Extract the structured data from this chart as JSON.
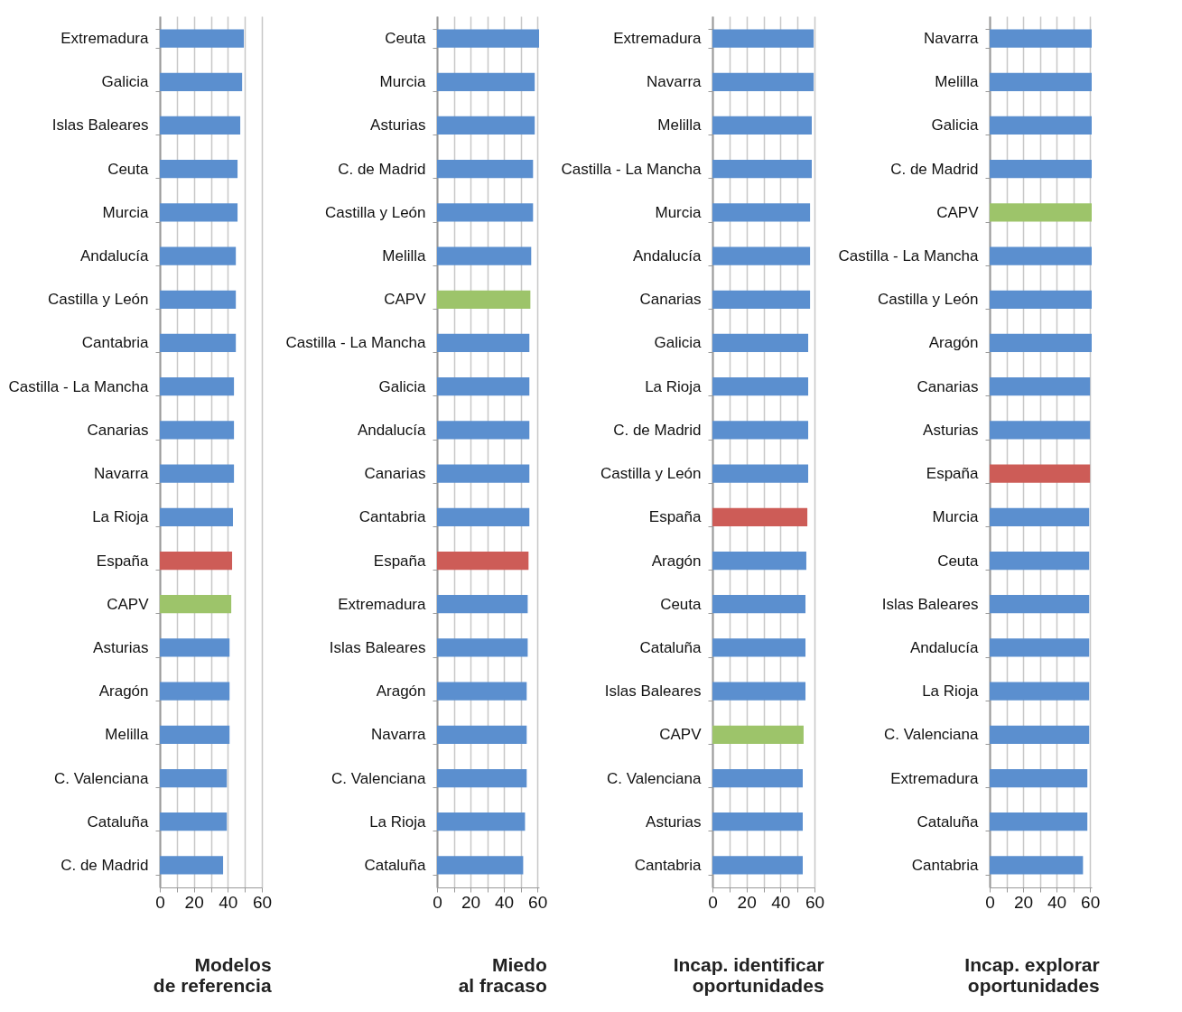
{
  "chart_data": [
    {
      "type": "bar",
      "orientation": "horizontal",
      "title": "Modelos\nde referencia",
      "categories": [
        "Extremadura",
        "Galicia",
        "Islas Baleares",
        "Ceuta",
        "Murcia",
        "Andalucía",
        "Castilla y León",
        "Cantabria",
        "Castilla - La Mancha",
        "Canarias",
        "Navarra",
        "La Rioja",
        "España",
        "CAPV",
        "Asturias",
        "Aragón",
        "Melilla",
        "C. Valenciana",
        "Cataluña",
        "C. de Madrid"
      ],
      "values": [
        49.4,
        48.4,
        47.3,
        45.7,
        45.7,
        44.7,
        44.7,
        44.7,
        43.6,
        43.6,
        43.6,
        43,
        42.5,
        42,
        41,
        41,
        41,
        39.4,
        39.4,
        37.2
      ],
      "colors": [
        "#5b8fcf",
        "#5b8fcf",
        "#5b8fcf",
        "#5b8fcf",
        "#5b8fcf",
        "#5b8fcf",
        "#5b8fcf",
        "#5b8fcf",
        "#5b8fcf",
        "#5b8fcf",
        "#5b8fcf",
        "#5b8fcf",
        "#cd5c57",
        "#9dc46a",
        "#5b8fcf",
        "#5b8fcf",
        "#5b8fcf",
        "#5b8fcf",
        "#5b8fcf",
        "#5b8fcf"
      ],
      "xlim": [
        0,
        60
      ],
      "xticks": [
        0,
        {
          "value": 10,
          "label": null
        },
        20,
        {
          "value": 30,
          "label": null
        },
        40,
        {
          "value": 50,
          "label": null
        },
        60
      ],
      "grid": "x"
    },
    {
      "type": "bar",
      "orientation": "horizontal",
      "title": "Miedo\nal fracaso",
      "categories": [
        "Ceuta",
        "Murcia",
        "Asturias",
        "C. de Madrid",
        "Castilla y León",
        "Melilla",
        "CAPV",
        "Castilla - La Mancha",
        "Galicia",
        "Andalucía",
        "Canarias",
        "Cantabria",
        "España",
        "Extremadura",
        "Islas Baleares",
        "Aragón",
        "Navarra",
        "C. Valenciana",
        "La Rioja",
        "Cataluña"
      ],
      "values": [
        61,
        58.4,
        58.4,
        57.4,
        57.4,
        56.3,
        55.8,
        55.2,
        55.2,
        55.2,
        55.2,
        55.2,
        54.7,
        54.2,
        54.2,
        53.6,
        53.6,
        53.6,
        52.6,
        51.5
      ],
      "colors": [
        "#5b8fcf",
        "#5b8fcf",
        "#5b8fcf",
        "#5b8fcf",
        "#5b8fcf",
        "#5b8fcf",
        "#9dc46a",
        "#5b8fcf",
        "#5b8fcf",
        "#5b8fcf",
        "#5b8fcf",
        "#5b8fcf",
        "#cd5c57",
        "#5b8fcf",
        "#5b8fcf",
        "#5b8fcf",
        "#5b8fcf",
        "#5b8fcf",
        "#5b8fcf",
        "#5b8fcf"
      ],
      "xlim": [
        0,
        61
      ],
      "xticks": [
        0,
        {
          "value": 10,
          "label": null
        },
        20,
        {
          "value": 30,
          "label": null
        },
        40,
        {
          "value": 50,
          "label": null
        },
        60
      ],
      "grid": "x"
    },
    {
      "type": "bar",
      "orientation": "horizontal",
      "title": "Incap. identificar\noportunidades",
      "categories": [
        "Extremadura",
        "Navarra",
        "Melilla",
        "Castilla - La Mancha",
        "Murcia",
        "Andalucía",
        "Canarias",
        "Galicia",
        "La Rioja",
        "C. de Madrid",
        "Castilla y León",
        "España",
        "Aragón",
        "Ceuta",
        "Cataluña",
        "Islas Baleares",
        "CAPV",
        "C. Valenciana",
        "Asturias",
        "Cantabria"
      ],
      "values": [
        59.5,
        59.5,
        58.4,
        58.4,
        57.4,
        57.4,
        57.4,
        56.3,
        56.3,
        56.3,
        56.3,
        55.8,
        55.2,
        54.7,
        54.7,
        54.7,
        53.6,
        53.1,
        53.1,
        53.1
      ],
      "colors": [
        "#5b8fcf",
        "#5b8fcf",
        "#5b8fcf",
        "#5b8fcf",
        "#5b8fcf",
        "#5b8fcf",
        "#5b8fcf",
        "#5b8fcf",
        "#5b8fcf",
        "#5b8fcf",
        "#5b8fcf",
        "#cd5c57",
        "#5b8fcf",
        "#5b8fcf",
        "#5b8fcf",
        "#5b8fcf",
        "#9dc46a",
        "#5b8fcf",
        "#5b8fcf",
        "#5b8fcf"
      ],
      "xlim": [
        0,
        60
      ],
      "xticks": [
        0,
        {
          "value": 10,
          "label": null
        },
        20,
        {
          "value": 30,
          "label": null
        },
        40,
        {
          "value": 50,
          "label": null
        },
        60
      ],
      "grid": "x"
    },
    {
      "type": "bar",
      "orientation": "horizontal",
      "title": "Incap. explorar\noportunidades",
      "categories": [
        "Navarra",
        "Melilla",
        "Galicia",
        "C. de Madrid",
        "CAPV",
        "Castilla - La Mancha",
        "Castilla y León",
        "Aragón",
        "Canarias",
        "Asturias",
        "España",
        "Murcia",
        "Ceuta",
        "Islas Baleares",
        "Andalucía",
        "La Rioja",
        "C. Valenciana",
        "Extremadura",
        "Cataluña",
        "Cantabria"
      ],
      "values": [
        61,
        61,
        61,
        61,
        61,
        61,
        61,
        61,
        60,
        60,
        60,
        59.5,
        59.5,
        59.5,
        59.5,
        59.5,
        59.5,
        58.4,
        58.4,
        55.8
      ],
      "colors": [
        "#5b8fcf",
        "#5b8fcf",
        "#5b8fcf",
        "#5b8fcf",
        "#9dc46a",
        "#5b8fcf",
        "#5b8fcf",
        "#5b8fcf",
        "#5b8fcf",
        "#5b8fcf",
        "#cd5c57",
        "#5b8fcf",
        "#5b8fcf",
        "#5b8fcf",
        "#5b8fcf",
        "#5b8fcf",
        "#5b8fcf",
        "#5b8fcf",
        "#5b8fcf",
        "#5b8fcf"
      ],
      "xlim": [
        0,
        61
      ],
      "xticks": [
        0,
        {
          "value": 10,
          "label": null
        },
        20,
        {
          "value": 30,
          "label": null
        },
        40,
        {
          "value": 50,
          "label": null
        },
        60
      ],
      "grid": "x"
    }
  ]
}
